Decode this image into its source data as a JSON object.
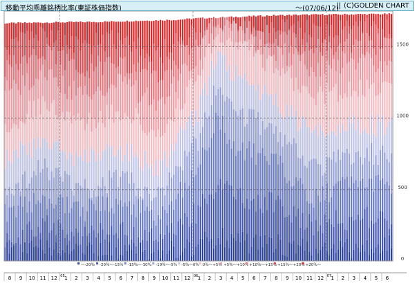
{
  "header": {
    "title": "移動平均乖離銘柄比率(東証株価指数)",
    "date": "〜(07/06/12)",
    "separator": "||",
    "copyright": "(C)GOLDEN CHART"
  },
  "chart_data": {
    "type": "bar",
    "stacked": true,
    "grid": true,
    "legend_position": "bottom",
    "ylim": [
      0,
      1750
    ],
    "yticks": [
      0,
      500,
      1000,
      1500
    ],
    "colors": [
      "#2c43a0",
      "#4a5db2",
      "#7080c6",
      "#9aa3d6",
      "#c2c7e8",
      "#f2c0c5",
      "#ee9ea6",
      "#e77880",
      "#de4f55",
      "#d92a2c"
    ],
    "series": [
      {
        "name": "〜-20％"
      },
      {
        "name": "-20％〜-15％"
      },
      {
        "name": "-15％〜-10％"
      },
      {
        "name": "-10％〜-5％"
      },
      {
        "name": "-5％〜0％"
      },
      {
        "name": "0％〜+5％"
      },
      {
        "name": "+5％〜+10％"
      },
      {
        "name": "+10％〜+15％"
      },
      {
        "name": "+15％〜+20％"
      },
      {
        "name": "+20％〜"
      }
    ],
    "x_months": [
      "8",
      "9",
      "10",
      "11",
      "12",
      "1",
      "2",
      "3",
      "4",
      "5",
      "6",
      "7",
      "8",
      "9",
      "10",
      "11",
      "12",
      "1",
      "2",
      "3",
      "4",
      "5",
      "6",
      "7",
      "8",
      "9",
      "10",
      "11",
      "12",
      "1",
      "2",
      "3",
      "4",
      "5",
      "6"
    ],
    "year_marks": [
      {
        "label": "05",
        "month_index": 5
      },
      {
        "label": "06",
        "month_index": 17
      },
      {
        "label": "07",
        "month_index": 29
      }
    ],
    "total_keypoints": [
      [
        0,
        1665
      ],
      [
        0.1,
        1670
      ],
      [
        0.25,
        1675
      ],
      [
        0.45,
        1690
      ],
      [
        0.5,
        1700
      ],
      [
        0.7,
        1720
      ],
      [
        0.8,
        1725
      ],
      [
        1,
        1730
      ]
    ],
    "bars_per_month": 5,
    "cumulative_keypoints": [
      [
        [
          0,
          50
        ],
        [
          0.1,
          80
        ],
        [
          0.2,
          60
        ],
        [
          0.3,
          70
        ],
        [
          0.4,
          50
        ],
        [
          0.5,
          100
        ],
        [
          0.55,
          180
        ],
        [
          0.6,
          140
        ],
        [
          0.7,
          120
        ],
        [
          0.8,
          80
        ],
        [
          0.9,
          100
        ],
        [
          1,
          120
        ]
      ],
      [
        [
          0,
          150
        ],
        [
          0.1,
          250
        ],
        [
          0.2,
          180
        ],
        [
          0.3,
          200
        ],
        [
          0.4,
          140
        ],
        [
          0.5,
          350
        ],
        [
          0.55,
          550
        ],
        [
          0.6,
          450
        ],
        [
          0.7,
          400
        ],
        [
          0.8,
          250
        ],
        [
          0.9,
          300
        ],
        [
          1,
          300
        ]
      ],
      [
        [
          0,
          350
        ],
        [
          0.1,
          450
        ],
        [
          0.2,
          350
        ],
        [
          0.3,
          420
        ],
        [
          0.4,
          300
        ],
        [
          0.5,
          650
        ],
        [
          0.55,
          1000
        ],
        [
          0.6,
          800
        ],
        [
          0.7,
          700
        ],
        [
          0.8,
          450
        ],
        [
          0.9,
          550
        ],
        [
          1,
          550
        ]
      ],
      [
        [
          0,
          500
        ],
        [
          0.1,
          650
        ],
        [
          0.2,
          500
        ],
        [
          0.3,
          580
        ],
        [
          0.4,
          450
        ],
        [
          0.5,
          850
        ],
        [
          0.55,
          1250
        ],
        [
          0.6,
          1050
        ],
        [
          0.7,
          900
        ],
        [
          0.8,
          650
        ],
        [
          0.9,
          750
        ],
        [
          1,
          750
        ]
      ],
      [
        [
          0,
          700
        ],
        [
          0.1,
          850
        ],
        [
          0.2,
          700
        ],
        [
          0.3,
          780
        ],
        [
          0.4,
          650
        ],
        [
          0.5,
          1050
        ],
        [
          0.55,
          1450
        ],
        [
          0.6,
          1300
        ],
        [
          0.7,
          1100
        ],
        [
          0.8,
          900
        ],
        [
          0.9,
          950
        ],
        [
          1,
          950
        ]
      ],
      [
        [
          0,
          950
        ],
        [
          0.1,
          1100
        ],
        [
          0.2,
          950
        ],
        [
          0.3,
          1050
        ],
        [
          0.4,
          900
        ],
        [
          0.5,
          1300
        ],
        [
          0.55,
          1580
        ],
        [
          0.6,
          1500
        ],
        [
          0.7,
          1350
        ],
        [
          0.8,
          1150
        ],
        [
          0.9,
          1200
        ],
        [
          1,
          1200
        ]
      ],
      [
        [
          0,
          1200
        ],
        [
          0.1,
          1300
        ],
        [
          0.2,
          1150
        ],
        [
          0.3,
          1250
        ],
        [
          0.4,
          1100
        ],
        [
          0.5,
          1450
        ],
        [
          0.55,
          1650
        ],
        [
          0.6,
          1600
        ],
        [
          0.7,
          1480
        ],
        [
          0.8,
          1350
        ],
        [
          0.9,
          1400
        ],
        [
          1,
          1400
        ]
      ],
      [
        [
          0,
          1350
        ],
        [
          0.1,
          1450
        ],
        [
          0.2,
          1350
        ],
        [
          0.3,
          1400
        ],
        [
          0.4,
          1300
        ],
        [
          0.5,
          1550
        ],
        [
          0.55,
          1690
        ],
        [
          0.6,
          1650
        ],
        [
          0.7,
          1570
        ],
        [
          0.8,
          1480
        ],
        [
          0.9,
          1520
        ],
        [
          1,
          1520
        ]
      ],
      [
        [
          0,
          1500
        ],
        [
          0.1,
          1580
        ],
        [
          0.2,
          1500
        ],
        [
          0.3,
          1550
        ],
        [
          0.4,
          1450
        ],
        [
          0.5,
          1630
        ],
        [
          0.55,
          1710
        ],
        [
          0.6,
          1690
        ],
        [
          0.7,
          1650
        ],
        [
          0.8,
          1600
        ],
        [
          0.9,
          1620
        ],
        [
          1,
          1630
        ]
      ]
    ]
  }
}
